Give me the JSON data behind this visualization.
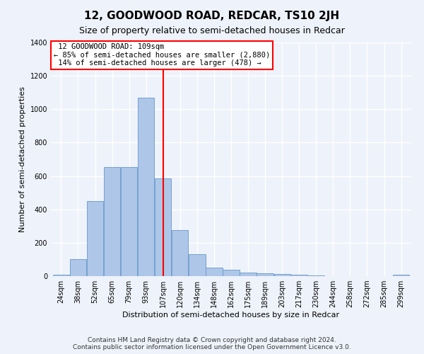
{
  "title": "12, GOODWOOD ROAD, REDCAR, TS10 2JH",
  "subtitle": "Size of property relative to semi-detached houses in Redcar",
  "xlabel": "Distribution of semi-detached houses by size in Redcar",
  "ylabel": "Number of semi-detached properties",
  "footer_line1": "Contains HM Land Registry data © Crown copyright and database right 2024.",
  "footer_line2": "Contains public sector information licensed under the Open Government Licence v3.0.",
  "property_label": "12 GOODWOOD ROAD: 109sqm",
  "pct_smaller": 85,
  "count_smaller": 2880,
  "pct_larger": 14,
  "count_larger": 478,
  "bin_labels": [
    "24sqm",
    "38sqm",
    "52sqm",
    "65sqm",
    "79sqm",
    "93sqm",
    "107sqm",
    "120sqm",
    "134sqm",
    "148sqm",
    "162sqm",
    "175sqm",
    "189sqm",
    "203sqm",
    "217sqm",
    "230sqm",
    "244sqm",
    "258sqm",
    "272sqm",
    "285sqm",
    "299sqm"
  ],
  "bar_centers": [
    0,
    1,
    2,
    3,
    4,
    5,
    6,
    7,
    8,
    9,
    10,
    11,
    12,
    13,
    14,
    15,
    16,
    17,
    18,
    19,
    20
  ],
  "bar_heights": [
    10,
    100,
    450,
    655,
    655,
    1070,
    585,
    275,
    130,
    52,
    38,
    22,
    15,
    12,
    8,
    5,
    1,
    0,
    0,
    0,
    10
  ],
  "vline_x": 6,
  "bar_color": "#aec6e8",
  "bar_edge_color": "#6699cc",
  "vline_color": "red",
  "ylim": [
    0,
    1400
  ],
  "yticks": [
    0,
    200,
    400,
    600,
    800,
    1000,
    1200,
    1400
  ],
  "background_color": "#eef2fa",
  "grid_color": "white",
  "title_fontsize": 11,
  "subtitle_fontsize": 9,
  "tick_fontsize": 7,
  "ylabel_fontsize": 8,
  "xlabel_fontsize": 8,
  "annotation_fontsize": 7.5,
  "footer_fontsize": 6.5
}
